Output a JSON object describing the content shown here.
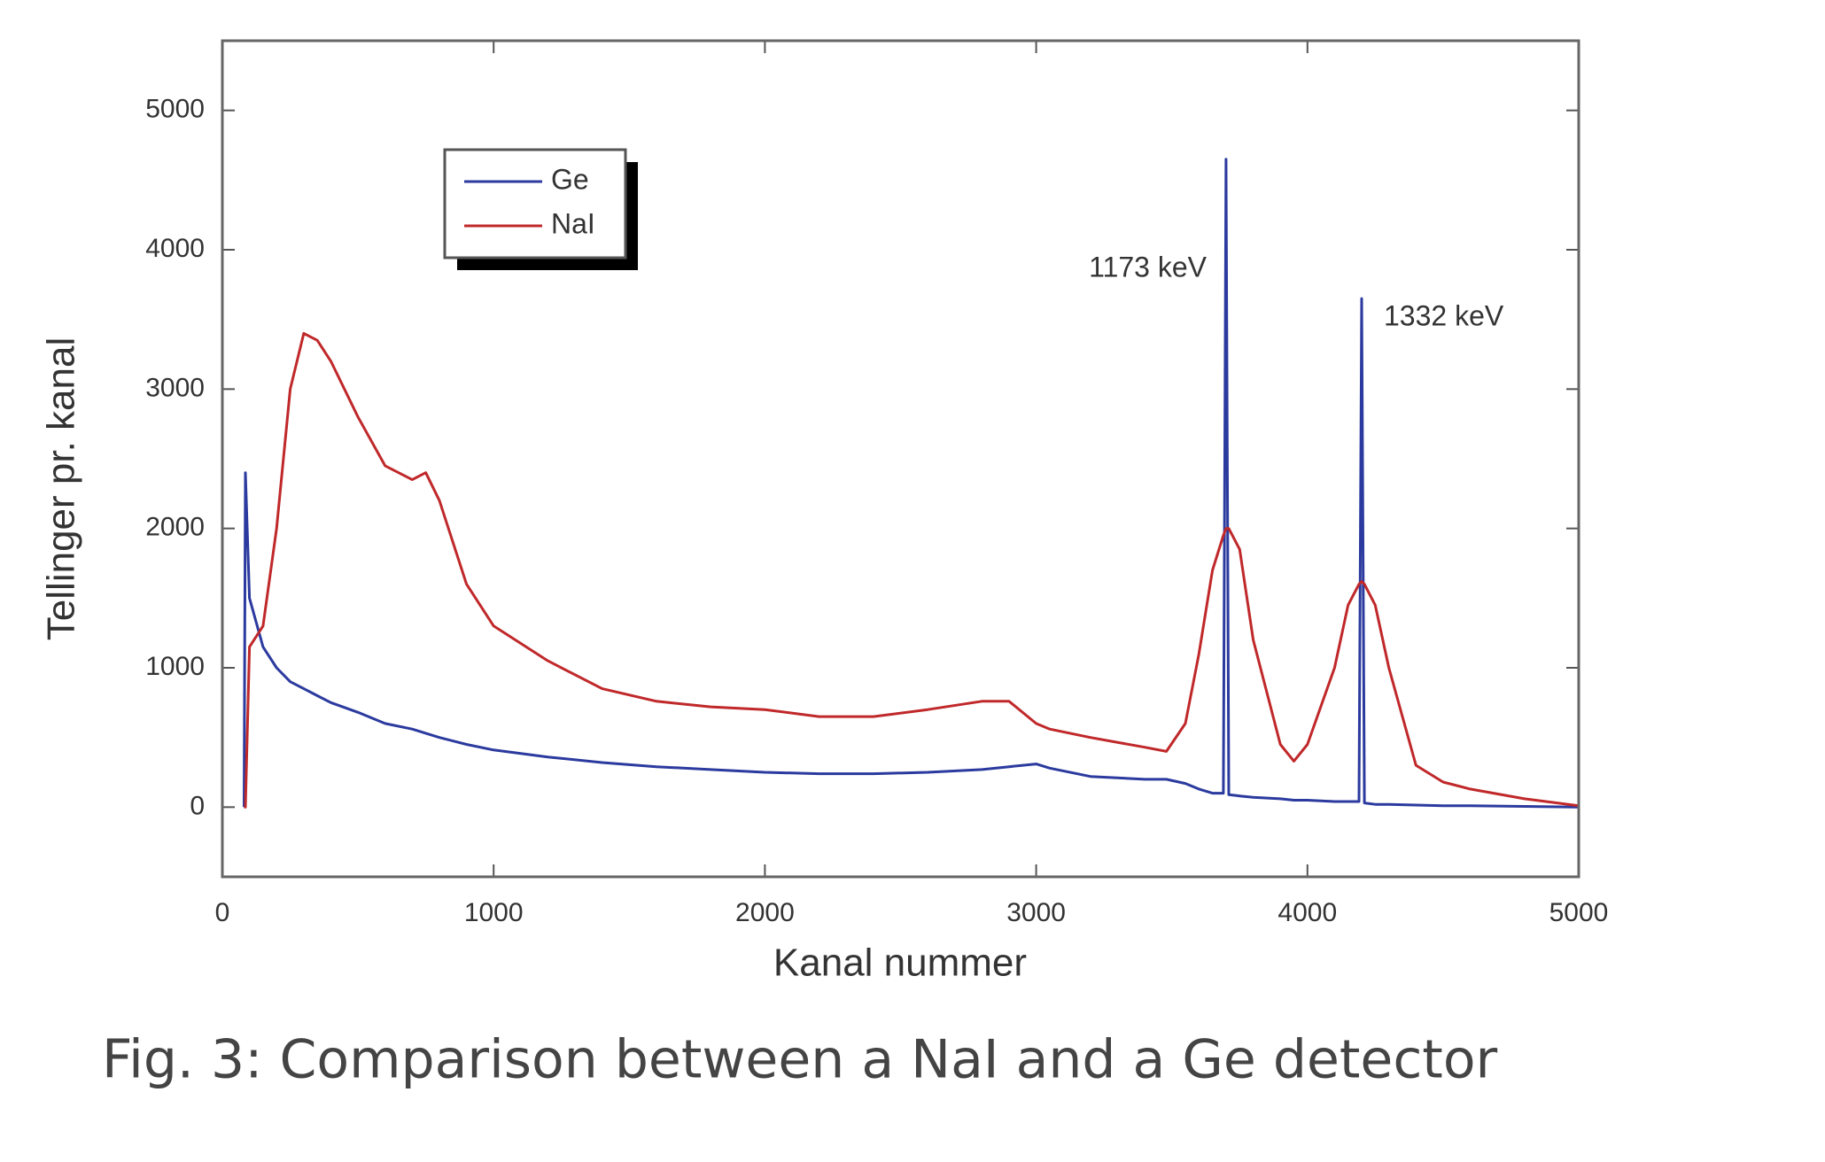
{
  "chart_data": {
    "type": "line",
    "caption": "Fig. 3: Comparison between a NaI and a Ge detector",
    "x_label": "Kanal nummer",
    "y_label": "Tellinger pr. kanal",
    "annotations": [
      "1173 keV",
      "1332 keV"
    ],
    "legend": "upper left",
    "grid": false,
    "xlim": [
      0,
      5000
    ],
    "xticks": [
      0,
      1000,
      2000,
      3000,
      4000,
      5000
    ],
    "ylim": [
      -500,
      5500
    ],
    "yticks": [
      0,
      1000,
      2000,
      3000,
      4000,
      5000
    ],
    "x": [
      80,
      85,
      100,
      150,
      200,
      250,
      300,
      350,
      400,
      500,
      600,
      700,
      750,
      800,
      900,
      1000,
      1200,
      1400,
      1600,
      1800,
      2000,
      2200,
      2400,
      2600,
      2800,
      2900,
      3000,
      3050,
      3200,
      3400,
      3480,
      3550,
      3600,
      3650,
      3690,
      3700,
      3710,
      3750,
      3800,
      3900,
      3950,
      4000,
      4100,
      4150,
      4190,
      4200,
      4210,
      4250,
      4300,
      4400,
      4500,
      4600,
      4800,
      5000
    ],
    "series": [
      {
        "name": "Ge",
        "color": "#2b3a9e",
        "values": [
          0,
          2400,
          1500,
          1150,
          1000,
          900,
          850,
          800,
          750,
          680,
          600,
          560,
          530,
          500,
          450,
          410,
          360,
          320,
          290,
          270,
          250,
          240,
          240,
          250,
          270,
          290,
          310,
          280,
          220,
          200,
          200,
          170,
          130,
          100,
          100,
          4650,
          90,
          80,
          70,
          60,
          50,
          50,
          40,
          40,
          40,
          3650,
          30,
          20,
          20,
          15,
          10,
          10,
          5,
          0
        ]
      },
      {
        "name": "NaI",
        "color": "#c0282a",
        "values": [
          0,
          0,
          1150,
          1300,
          2000,
          3000,
          3400,
          3350,
          3200,
          2800,
          2450,
          2350,
          2400,
          2200,
          1600,
          1300,
          1050,
          850,
          760,
          720,
          700,
          650,
          650,
          700,
          760,
          760,
          600,
          560,
          500,
          430,
          400,
          600,
          1100,
          1700,
          1950,
          2000,
          2000,
          1850,
          1200,
          450,
          330,
          450,
          1000,
          1450,
          1600,
          1620,
          1600,
          1450,
          1000,
          300,
          180,
          130,
          60,
          10
        ]
      }
    ]
  }
}
